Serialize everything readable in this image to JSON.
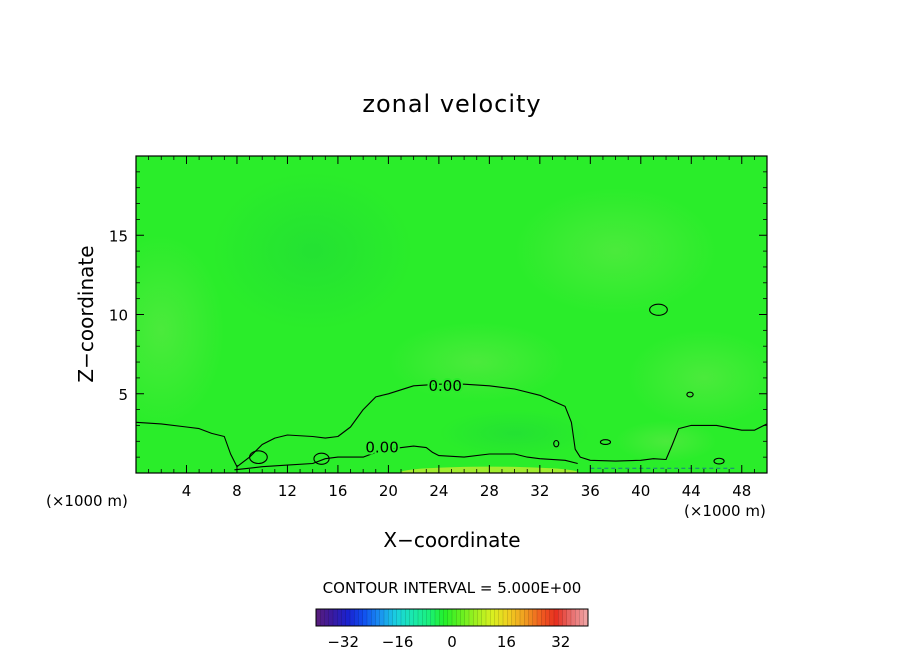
{
  "chart_data": {
    "type": "heatmap",
    "title": "zonal velocity",
    "xlabel": "X−coordinate",
    "ylabel": "Z−coordinate",
    "x_unit_left": "(×1000 m)",
    "x_unit_right": "(×1000 m)",
    "xlim": [
      0,
      50
    ],
    "ylim": [
      0,
      20
    ],
    "xticks": [
      4,
      8,
      12,
      16,
      20,
      24,
      28,
      32,
      36,
      40,
      44,
      48
    ],
    "yticks": [
      5,
      10,
      15
    ],
    "contour_interval_label": "CONTOUR INTERVAL = 5.000E+00",
    "contour_labels": [
      {
        "text": "0.00",
        "x": 24.5,
        "y": 5.5
      },
      {
        "text": "0.00",
        "x": 19.5,
        "y": 1.6
      }
    ],
    "contours": {
      "main_zero": [
        [
          0,
          3.2
        ],
        [
          2,
          3.1
        ],
        [
          4,
          2.9
        ],
        [
          5,
          2.8
        ],
        [
          6,
          2.5
        ],
        [
          7,
          2.3
        ],
        [
          7.5,
          1.2
        ],
        [
          8,
          0.4
        ],
        [
          9,
          1.0
        ],
        [
          10,
          1.8
        ],
        [
          11,
          2.2
        ],
        [
          12,
          2.4
        ],
        [
          14,
          2.3
        ],
        [
          15,
          2.2
        ],
        [
          16,
          2.3
        ],
        [
          17,
          2.9
        ],
        [
          18,
          4.0
        ],
        [
          19,
          4.8
        ],
        [
          20,
          5.0
        ],
        [
          22,
          5.5
        ],
        [
          24,
          5.6
        ],
        [
          26,
          5.6
        ],
        [
          28,
          5.5
        ],
        [
          30,
          5.3
        ],
        [
          32,
          4.9
        ],
        [
          34,
          4.2
        ],
        [
          34.5,
          3.2
        ],
        [
          34.8,
          1.5
        ],
        [
          35.2,
          1.0
        ],
        [
          36,
          0.8
        ],
        [
          38,
          0.75
        ],
        [
          40,
          0.8
        ],
        [
          41,
          0.9
        ],
        [
          42,
          0.85
        ],
        [
          42.5,
          1.8
        ],
        [
          43,
          2.8
        ],
        [
          44,
          3.0
        ],
        [
          46,
          3.0
        ],
        [
          48,
          2.7
        ],
        [
          49,
          2.7
        ],
        [
          50,
          3.1
        ]
      ],
      "inner_zero": [
        [
          7.8,
          0.2
        ],
        [
          9,
          0.3
        ],
        [
          10,
          0.4
        ],
        [
          12,
          0.5
        ],
        [
          14,
          0.6
        ],
        [
          15,
          0.9
        ],
        [
          16,
          1.0
        ],
        [
          18,
          1.0
        ],
        [
          19,
          1.3
        ],
        [
          20,
          1.5
        ],
        [
          22,
          1.7
        ],
        [
          23,
          1.6
        ],
        [
          23.5,
          1.3
        ],
        [
          24,
          1.1
        ],
        [
          26,
          1.0
        ],
        [
          28,
          1.2
        ],
        [
          30,
          1.2
        ],
        [
          31,
          1.0
        ],
        [
          32,
          0.9
        ],
        [
          34,
          0.8
        ],
        [
          35,
          0.6
        ]
      ],
      "small_loops": [
        {
          "cx": 41.4,
          "cy": 10.3,
          "rx": 0.7,
          "ry": 0.35
        },
        {
          "cx": 43.9,
          "cy": 4.95,
          "rx": 0.25,
          "ry": 0.15
        },
        {
          "cx": 37.2,
          "cy": 1.95,
          "rx": 0.4,
          "ry": 0.15
        },
        {
          "cx": 33.3,
          "cy": 1.85,
          "rx": 0.2,
          "ry": 0.2
        },
        {
          "cx": 9.7,
          "cy": 1.0,
          "rx": 0.7,
          "ry": 0.4
        },
        {
          "cx": 14.7,
          "cy": 0.9,
          "rx": 0.6,
          "ry": 0.35
        },
        {
          "cx": 46.2,
          "cy": 0.75,
          "rx": 0.4,
          "ry": 0.18
        }
      ]
    },
    "colorbar": {
      "ticks": [
        -32,
        -16,
        0,
        16,
        32
      ],
      "range": [
        -40,
        40
      ],
      "colors": [
        "#5a1e7a",
        "#3a1aa0",
        "#1a22d0",
        "#1050f0",
        "#1a90f0",
        "#1ad0e0",
        "#1ae8b0",
        "#1af080",
        "#22f02a",
        "#60f020",
        "#a0f020",
        "#d8f020",
        "#f0d020",
        "#f0a020",
        "#f06020",
        "#e83020",
        "#e87070",
        "#f0a8a8"
      ]
    },
    "colors": {
      "field": "#2aed2a",
      "field_light": "#33ee30",
      "field_dark": "#1fe232",
      "positive_band": "#b6ec30"
    }
  }
}
